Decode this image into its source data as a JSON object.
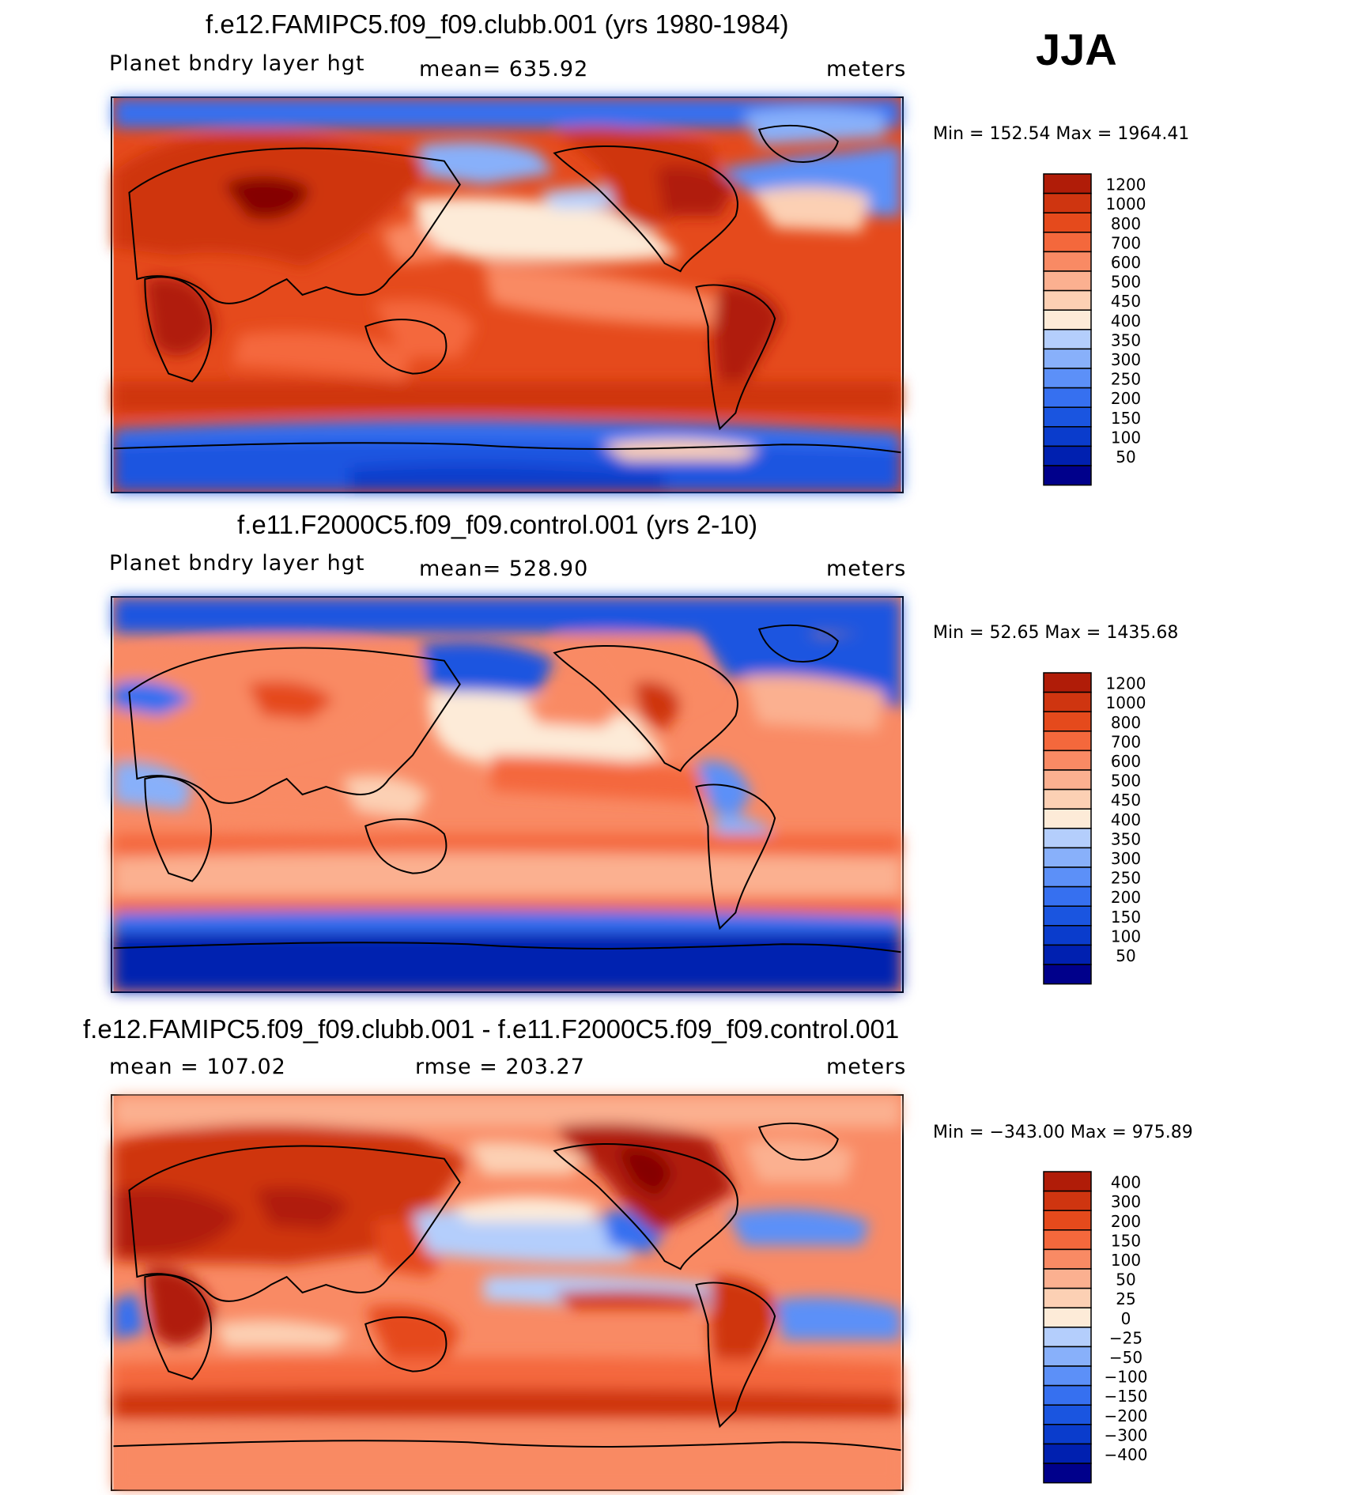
{
  "season": "JJA",
  "colors": {
    "blue": [
      "#00008b",
      "#0020b0",
      "#0a3ccc",
      "#1a55e0",
      "#3670f0",
      "#5c90f8",
      "#88b0fa",
      "#b4cefc",
      "#dcebfc"
    ],
    "red": [
      "#fdebd8",
      "#fcd0b4",
      "#fbb090",
      "#f98a64",
      "#f4683c",
      "#e54a1c",
      "#cf3510",
      "#b01c08",
      "#850000"
    ]
  },
  "chart_data": [
    {
      "type": "heatmap",
      "title": "f.e12.FAMIPC5.f09_f09.clubb.001 (yrs 1980-1984)",
      "variable": "Planet bndry layer hgt",
      "stat": "mean= 635.92",
      "units": "meters",
      "minmax": "Min = 152.54 Max = 1964.41",
      "levels": [
        "1200",
        "1000",
        "800",
        "700",
        "600",
        "500",
        "450",
        "400",
        "350",
        "300",
        "250",
        "200",
        "150",
        "100",
        "50"
      ]
    },
    {
      "type": "heatmap",
      "title": "f.e11.F2000C5.f09_f09.control.001 (yrs 2-10)",
      "variable": "Planet bndry layer hgt",
      "stat": "mean= 528.90",
      "units": "meters",
      "minmax": "Min =  52.65 Max = 1435.68",
      "levels": [
        "1200",
        "1000",
        "800",
        "700",
        "600",
        "500",
        "450",
        "400",
        "350",
        "300",
        "250",
        "200",
        "150",
        "100",
        "50"
      ]
    },
    {
      "type": "heatmap",
      "title": "f.e12.FAMIPC5.f09_f09.clubb.001 - f.e11.F2000C5.f09_f09.control.001",
      "variable": "mean = 107.02",
      "stat": "rmse = 203.27",
      "units": "meters",
      "minmax": "Min = −343.00 Max = 975.89",
      "levels": [
        "400",
        "300",
        "200",
        "150",
        "100",
        "50",
        "25",
        "0",
        "−25",
        "−50",
        "−100",
        "−150",
        "−200",
        "−300",
        "−400"
      ]
    }
  ]
}
